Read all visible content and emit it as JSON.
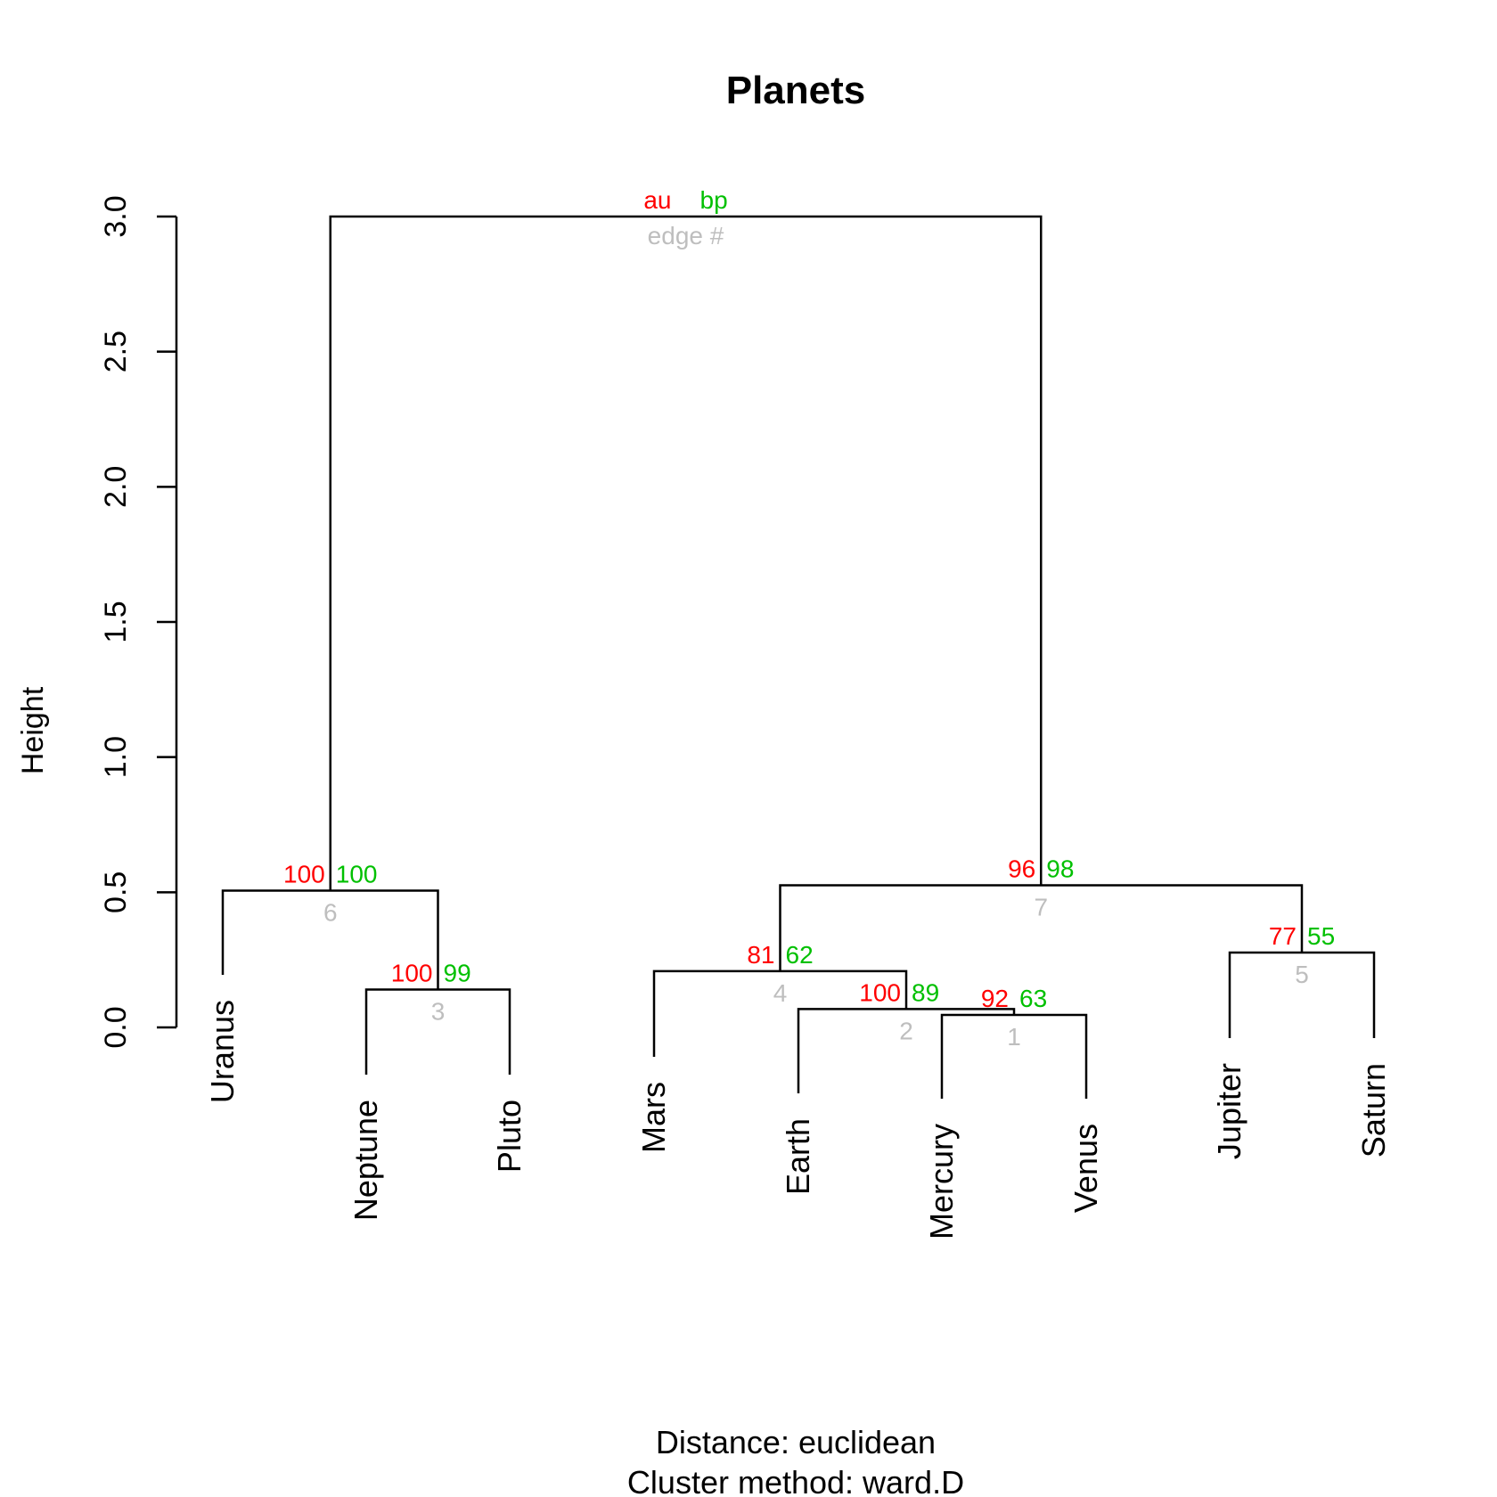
{
  "chart_data": {
    "type": "dendrogram",
    "title": "Planets",
    "ylabel": "Height",
    "xlabel_lines": [
      "Distance:  euclidean",
      "Cluster method: ward.D"
    ],
    "ylim": [
      0,
      3
    ],
    "yticks": [
      0,
      0.5,
      1,
      1.5,
      2,
      2.5,
      3
    ],
    "ytick_labels": [
      "0.0",
      "0.5",
      "1.0",
      "1.5",
      "2.0",
      "2.5",
      "3.0"
    ],
    "leaves": [
      "Uranus",
      "Neptune",
      "Pluto",
      "Mars",
      "Earth",
      "Mercury",
      "Venus",
      "Jupiter",
      "Saturn"
    ],
    "merges": [
      {
        "edge": "1",
        "left": "Mercury",
        "right": "Venus",
        "height": 0.046,
        "au": "92",
        "bp": "63"
      },
      {
        "edge": "2",
        "left": "Earth",
        "right": "E1",
        "height": 0.068,
        "au": "100",
        "bp": "89"
      },
      {
        "edge": "3",
        "left": "Neptune",
        "right": "Pluto",
        "height": 0.14,
        "au": "100",
        "bp": "99"
      },
      {
        "edge": "4",
        "left": "Mars",
        "right": "E2",
        "height": 0.208,
        "au": "81",
        "bp": "62"
      },
      {
        "edge": "5",
        "left": "Jupiter",
        "right": "Saturn",
        "height": 0.277,
        "au": "77",
        "bp": "55"
      },
      {
        "edge": "6",
        "left": "Uranus",
        "right": "E3",
        "height": 0.506,
        "au": "100",
        "bp": "100"
      },
      {
        "edge": "7",
        "left": "E4",
        "right": "E5",
        "height": 0.526,
        "au": "96",
        "bp": "98"
      },
      {
        "edge": "",
        "left": "E6",
        "right": "E7",
        "height": 3.0,
        "au": "",
        "bp": ""
      }
    ],
    "header_labels": {
      "au": "au",
      "bp": "bp",
      "edge": "edge #"
    },
    "colors": {
      "au": "#ff0000",
      "bp": "#00c000",
      "edge": "#bebebe",
      "line": "#000000"
    }
  }
}
